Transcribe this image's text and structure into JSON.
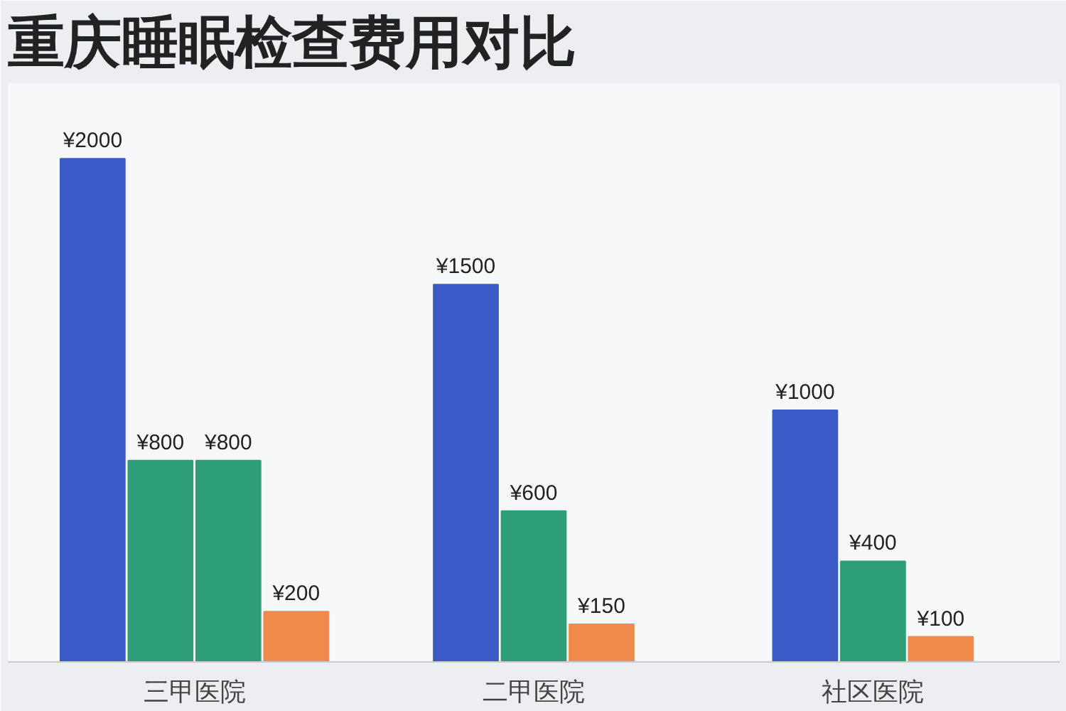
{
  "chart_data": {
    "type": "bar",
    "title": "重庆睡眠检查费用对比",
    "categories": [
      "三甲医院",
      "二甲医院",
      "社区医院"
    ],
    "series": [
      {
        "color": "#3a5bc7",
        "values": [
          2000,
          1500,
          1000
        ],
        "value_labels": [
          "¥2000",
          "¥1500",
          "¥1000"
        ]
      },
      {
        "color": "#2e9e78",
        "values": [
          800,
          600,
          400
        ],
        "value_labels": [
          "¥800",
          "¥600",
          "¥400"
        ]
      },
      {
        "color": "#2e9e78",
        "values": [
          800,
          null,
          null
        ],
        "value_labels": [
          "¥800",
          null,
          null
        ]
      },
      {
        "color": "#f08a4b",
        "values": [
          200,
          150,
          100
        ],
        "value_labels": [
          "¥200",
          "¥150",
          "¥100"
        ]
      }
    ]
  }
}
